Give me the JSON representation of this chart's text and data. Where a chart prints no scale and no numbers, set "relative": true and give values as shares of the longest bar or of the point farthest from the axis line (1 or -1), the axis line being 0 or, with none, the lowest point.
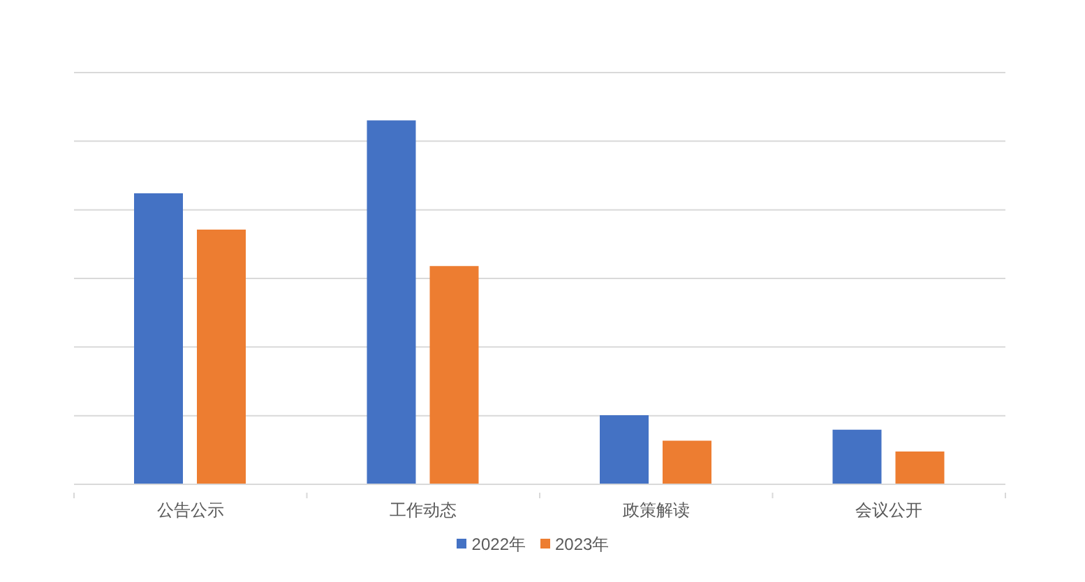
{
  "chart_data": {
    "type": "bar",
    "relative": true,
    "categories": [
      "公告公示",
      "工作动态",
      "政策解读",
      "会议公开"
    ],
    "series": [
      {
        "name": "2022年",
        "color": "#4472c4",
        "values": [
          0.8,
          1,
          0.19,
          0.15
        ]
      },
      {
        "name": "2023年",
        "color": "#ed7d31",
        "values": [
          0.7,
          0.6,
          0.12,
          0.09
        ]
      }
    ],
    "grid": "y",
    "legend": "bottom"
  }
}
